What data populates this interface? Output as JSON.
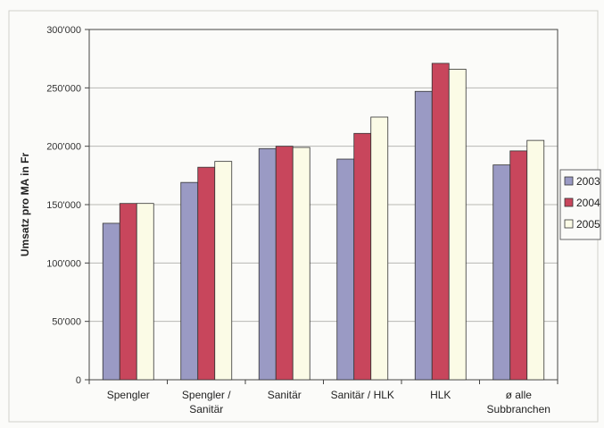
{
  "chart_data": {
    "type": "bar",
    "title": "",
    "xlabel": "",
    "ylabel": "Umsatz pro MA in Fr",
    "ylim": [
      0,
      300000
    ],
    "yticks": [
      0,
      50000,
      100000,
      150000,
      200000,
      250000,
      300000
    ],
    "ytick_labels": [
      "0",
      "50'000",
      "100'000",
      "150'000",
      "200'000",
      "250'000",
      "300'000"
    ],
    "grid": true,
    "legend_position": "right",
    "categories": [
      [
        "Spengler"
      ],
      [
        "Spengler /",
        "Sanitär"
      ],
      [
        "Sanitär"
      ],
      [
        "Sanitär / HLK"
      ],
      [
        "HLK"
      ],
      [
        "ø alle",
        "Subbranchen"
      ]
    ],
    "series": [
      {
        "name": "2003",
        "color": "#9a9ac4",
        "values": [
          134000,
          169000,
          198000,
          189000,
          247000,
          184000
        ]
      },
      {
        "name": "2004",
        "color": "#c8465c",
        "values": [
          151000,
          182000,
          200000,
          211000,
          271000,
          196000
        ]
      },
      {
        "name": "2005",
        "color": "#fbfbe6",
        "values": [
          151000,
          187000,
          199000,
          225000,
          266000,
          205000
        ]
      }
    ]
  }
}
